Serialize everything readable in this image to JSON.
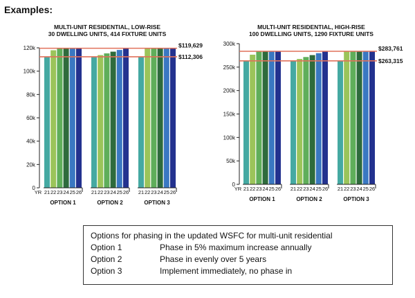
{
  "heading": "Examples:",
  "chart_data": [
    {
      "type": "bar",
      "title": "MULTI-UNIT RESIDENTIAL, LOW-RISE",
      "subtitle": "30 DWELLING UNITS, 414 FIXTURE UNITS",
      "ylim": [
        0,
        120000
      ],
      "yticks": [
        0,
        20000,
        40000,
        60000,
        80000,
        100000,
        120000
      ],
      "ytick_labels": [
        "0",
        "20k",
        "40k",
        "60k",
        "80k",
        "100k",
        "120k"
      ],
      "year_axis_label": "YR",
      "groups": [
        {
          "label": "OPTION 1",
          "years": [
            "21",
            "22",
            "23",
            "24",
            "25",
            "26"
          ],
          "values": [
            112306,
            117900,
            119629,
            119629,
            119629,
            119629
          ]
        },
        {
          "label": "OPTION 2",
          "years": [
            "21",
            "22",
            "23",
            "24",
            "25",
            "26"
          ],
          "values": [
            112306,
            113770,
            115230,
            116700,
            118160,
            119629
          ]
        },
        {
          "label": "OPTION 3",
          "years": [
            "21",
            "22",
            "23",
            "24",
            "25",
            "26"
          ],
          "values": [
            112306,
            119629,
            119629,
            119629,
            119629,
            119629
          ]
        }
      ],
      "reference_lines": [
        {
          "value": 119629,
          "label": "$119,629"
        },
        {
          "value": 112306,
          "label": "$112,306"
        }
      ],
      "colors": [
        "#45a9a2",
        "#9bc45a",
        "#5fae5a",
        "#2e6b3c",
        "#3a78c2",
        "#23328f"
      ],
      "reference_color": "#e0715a"
    },
    {
      "type": "bar",
      "title": "MULTI-UNIT RESIDENTIAL, HIGH-RISE",
      "subtitle": "100 DWELLING UNITS, 1290 FIXTURE UNITS",
      "ylim": [
        0,
        300000
      ],
      "yticks": [
        0,
        50000,
        100000,
        150000,
        200000,
        250000,
        300000
      ],
      "ytick_labels": [
        "0",
        "50k",
        "100k",
        "150k",
        "200k",
        "250k",
        "300k"
      ],
      "year_axis_label": "YR",
      "groups": [
        {
          "label": "OPTION 1",
          "years": [
            "21",
            "22",
            "23",
            "24",
            "25",
            "26"
          ],
          "values": [
            263315,
            276480,
            283761,
            283761,
            283761,
            283761
          ]
        },
        {
          "label": "OPTION 2",
          "years": [
            "21",
            "22",
            "23",
            "24",
            "25",
            "26"
          ],
          "values": [
            263315,
            267400,
            271500,
            275600,
            279700,
            283761
          ]
        },
        {
          "label": "OPTION 3",
          "years": [
            "21",
            "22",
            "23",
            "24",
            "25",
            "26"
          ],
          "values": [
            263315,
            283761,
            283761,
            283761,
            283761,
            283761
          ]
        }
      ],
      "reference_lines": [
        {
          "value": 283761,
          "label": "$283,761"
        },
        {
          "value": 263315,
          "label": "$263,315"
        }
      ],
      "colors": [
        "#45a9a2",
        "#9bc45a",
        "#5fae5a",
        "#2e6b3c",
        "#3a78c2",
        "#23328f"
      ],
      "reference_color": "#e0715a"
    }
  ],
  "legend": {
    "title": "Options for phasing in the updated WSFC for multi-unit residential",
    "rows": [
      {
        "option": "Option 1",
        "text": "Phase in 5% maximum increase annually"
      },
      {
        "option": "Option 2",
        "text": "Phase in evenly over 5 years"
      },
      {
        "option": "Option 3",
        "text": "Implement immediately, no phase in"
      }
    ]
  }
}
